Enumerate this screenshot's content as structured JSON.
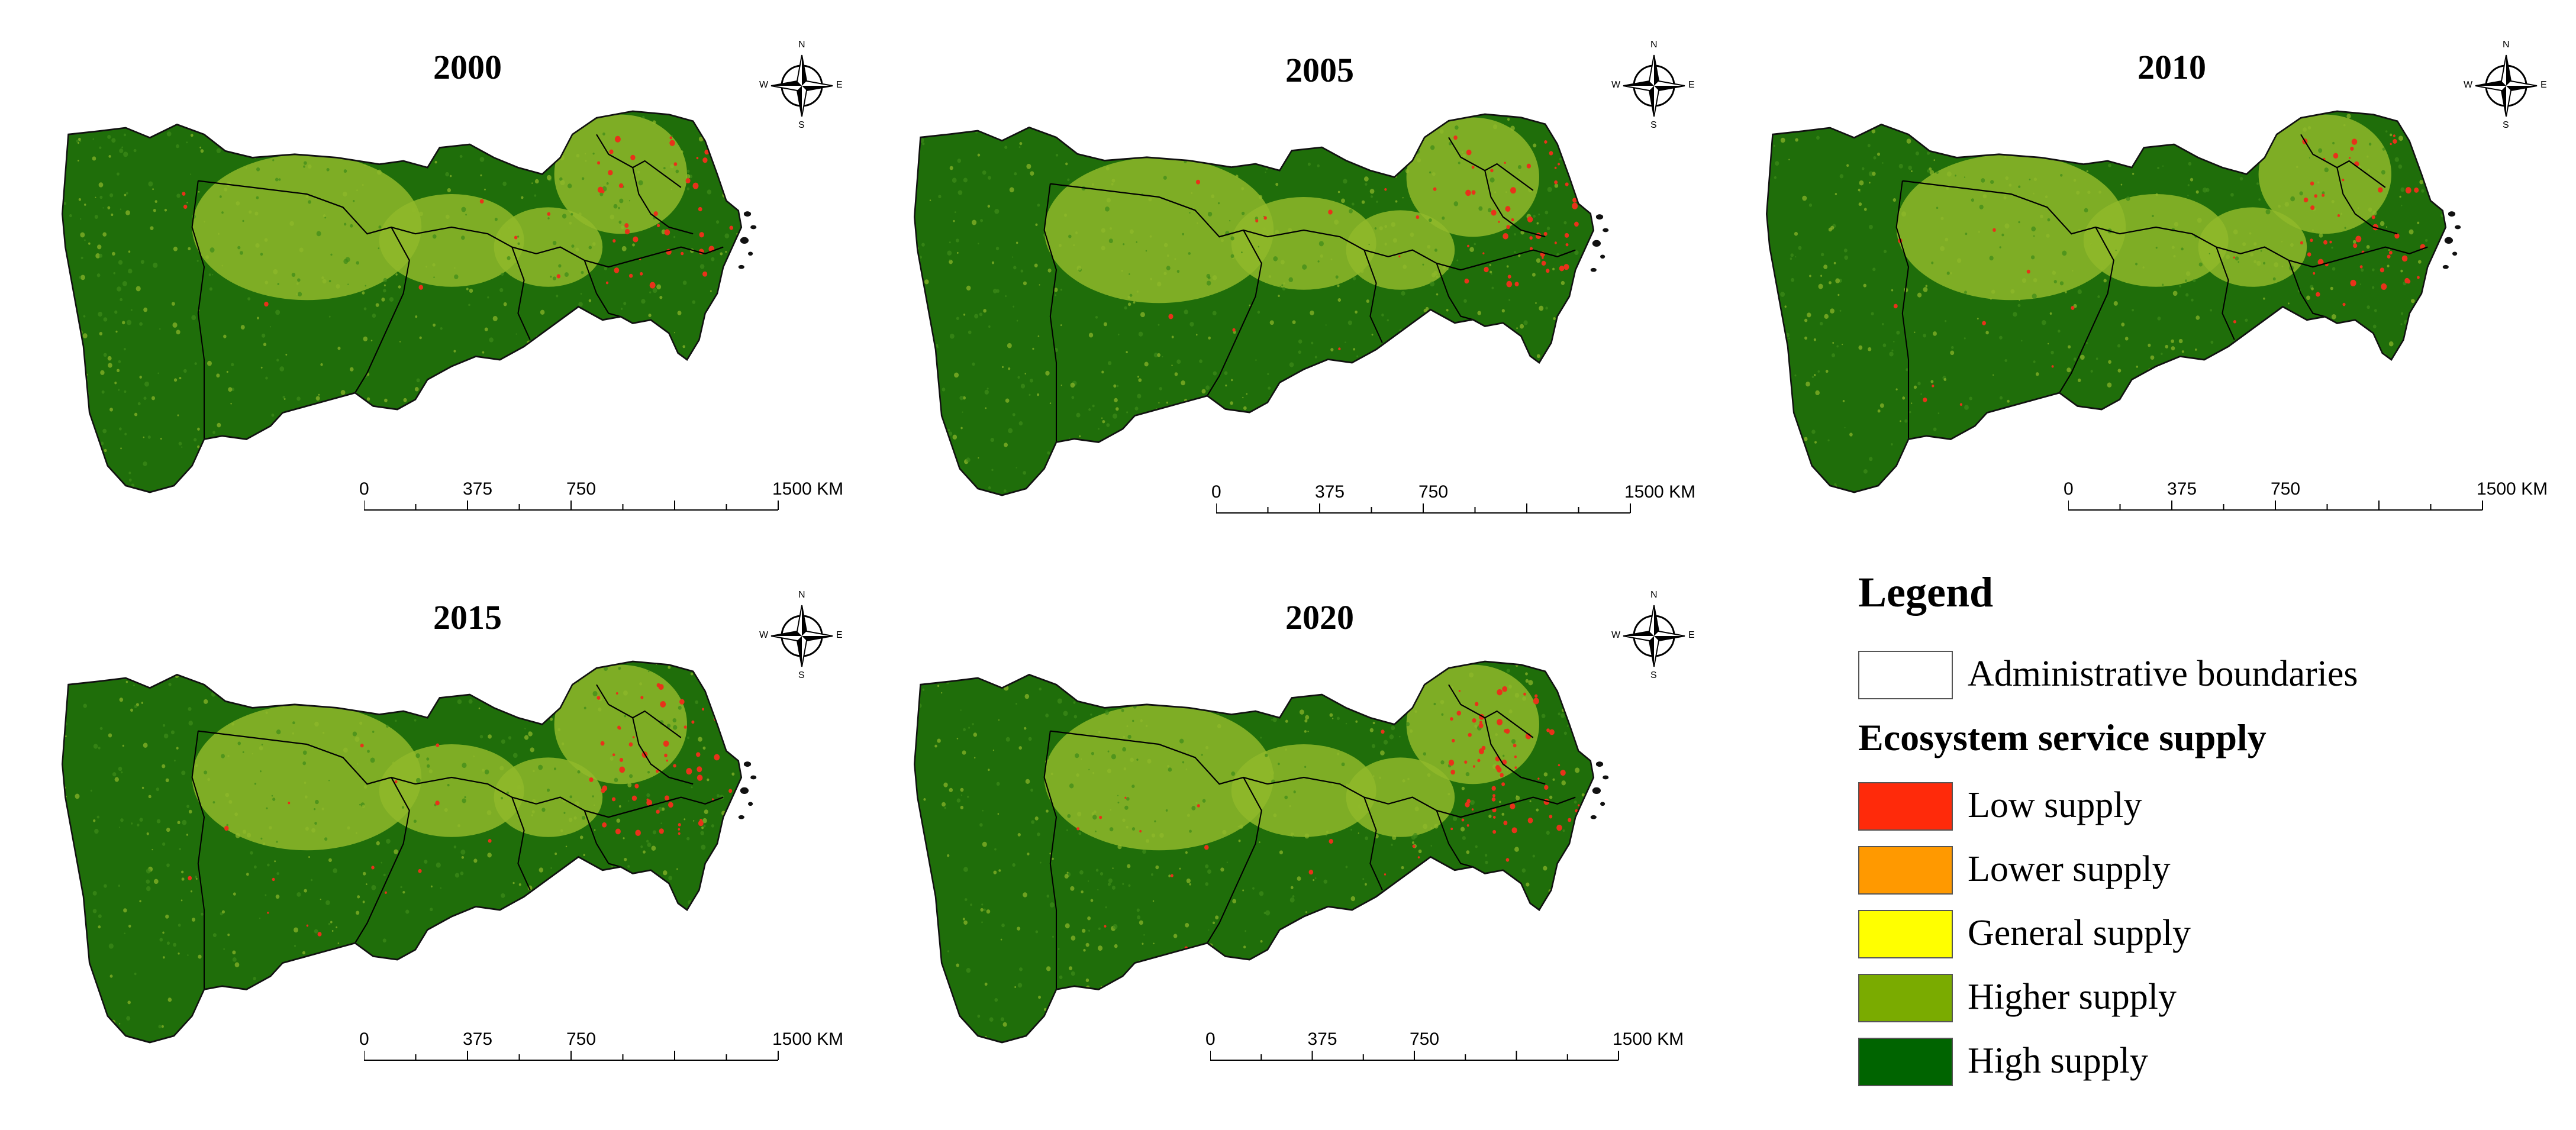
{
  "panels": [
    {
      "year": "2000"
    },
    {
      "year": "2005"
    },
    {
      "year": "2010"
    },
    {
      "year": "2015"
    },
    {
      "year": "2020"
    }
  ],
  "compass": {
    "n": "N",
    "s": "S",
    "e": "E",
    "w": "W"
  },
  "scale_bar": {
    "labels": [
      "0",
      "375",
      "750",
      "1500 KM"
    ]
  },
  "legend": {
    "title": "Legend",
    "boundary_label": "Administrative boundaries",
    "section_title": "Ecosystem service supply",
    "classes": [
      {
        "label": "Low supply",
        "color": "#ff2a0a"
      },
      {
        "label": "Lower supply",
        "color": "#ff9900"
      },
      {
        "label": "General supply",
        "color": "#ffff00"
      },
      {
        "label": "Higher supply",
        "color": "#7aab00"
      },
      {
        "label": "High supply",
        "color": "#006400"
      }
    ]
  },
  "colors": {
    "boundary": "#000000",
    "high": "#1f6e0a",
    "higher": "#8fb82a",
    "low": "#e8321a"
  }
}
